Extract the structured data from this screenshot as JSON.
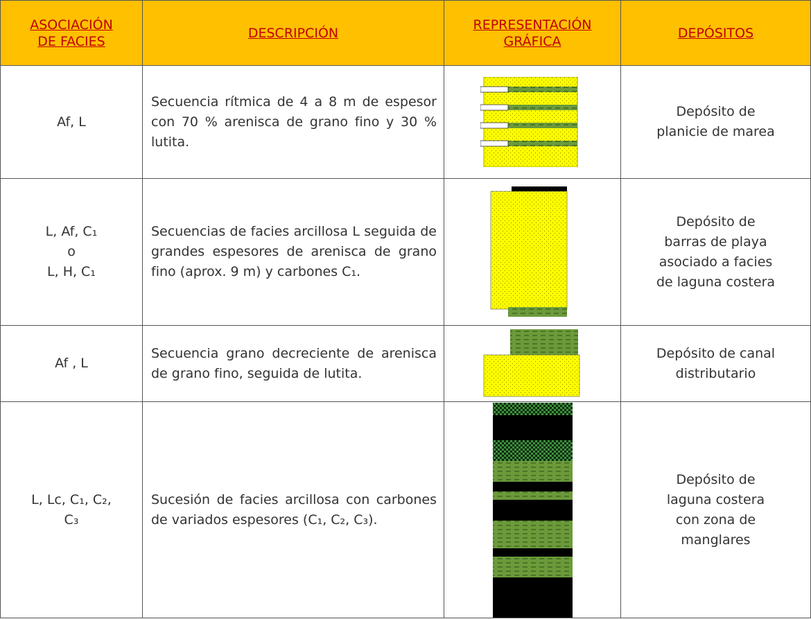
{
  "header": [
    {
      "lines": [
        "ASOCIACIÓN",
        "DE FACIES"
      ]
    },
    {
      "lines": [
        "DESCRIPCIÓN"
      ]
    },
    {
      "lines": [
        "REPRESENTACIÓN",
        "GRÁFICA"
      ]
    },
    {
      "lines": [
        "DEPÓSITOS"
      ]
    }
  ],
  "rows": [
    {
      "facies": [
        "Af, L"
      ],
      "description": "Secuencia rítmica de 4 a 8 m de espesor con 70 % arenisca de grano fino y 30 % lutita.",
      "deposit": [
        "Depósito de",
        "planicie de marea"
      ]
    },
    {
      "facies": [
        "L, Af, C₁",
        "o",
        "L, H, C₁"
      ],
      "description": "Secuencias de facies arcillosa L seguida de grandes espesores de arenisca de grano fino (aprox. 9 m) y carbones C₁.",
      "deposit": [
        "Depósito de",
        "barras de playa",
        "asociado a facies",
        "de laguna costera"
      ]
    },
    {
      "facies": [
        "Af , L"
      ],
      "description": "Secuencia grano decreciente de arenisca de grano fino, seguida de lutita.",
      "deposit": [
        "Depósito de canal",
        "distributario"
      ]
    },
    {
      "facies": [
        "L, Lc, C₁, C₂,",
        "C₃"
      ],
      "description": "Sucesión de facies arcillosa con carbones de variados espesores (C₁, C₂, C₃).",
      "deposit": [
        "Depósito de",
        "laguna costera",
        "con zona de",
        "manglares"
      ]
    }
  ]
}
